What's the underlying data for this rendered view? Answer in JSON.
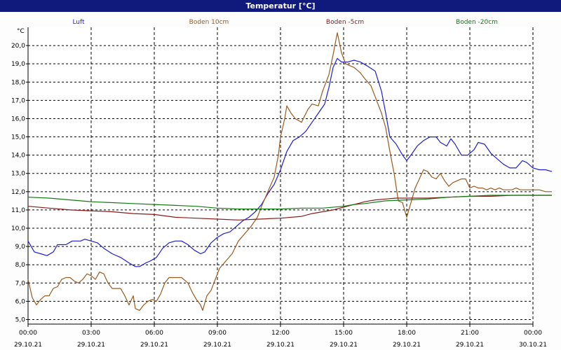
{
  "window": {
    "title": "Temperatur [°C]"
  },
  "chart_data": {
    "type": "line",
    "title": "Temperatur [°C]",
    "ylabel": "°C",
    "xlabel": "",
    "ylim": [
      4.75,
      21.0
    ],
    "grid": true,
    "legend_position": "top",
    "x_tick_labels": [
      {
        "time": "00:00",
        "date": "29.10.21"
      },
      {
        "time": "03:00",
        "date": "29.10.21"
      },
      {
        "time": "06:00",
        "date": "29.10.21"
      },
      {
        "time": "09:00",
        "date": "29.10.21"
      },
      {
        "time": "12:00",
        "date": "29.10.21"
      },
      {
        "time": "15:00",
        "date": "29.10.21"
      },
      {
        "time": "18:00",
        "date": "29.10.21"
      },
      {
        "time": "21:00",
        "date": "29.10.21"
      },
      {
        "time": "00:00",
        "date": "30.10.21"
      }
    ],
    "y_ticks": [
      "5,0",
      "6,0",
      "7,0",
      "8,0",
      "9,0",
      "10,0",
      "11,0",
      "12,0",
      "13,0",
      "14,0",
      "15,0",
      "16,0",
      "17,0",
      "18,0",
      "19,0",
      "20,0"
    ],
    "y_tick_values": [
      5,
      6,
      7,
      8,
      9,
      10,
      11,
      12,
      13,
      14,
      15,
      16,
      17,
      18,
      19,
      20
    ],
    "x_tick_hours": [
      0,
      3,
      6,
      9,
      12,
      15,
      18,
      21,
      24
    ],
    "series": [
      {
        "name": "Luft",
        "color": "#1f1fd0",
        "points": [
          [
            0,
            9.3
          ],
          [
            0.3,
            8.7
          ],
          [
            0.6,
            8.6
          ],
          [
            0.9,
            8.5
          ],
          [
            1.2,
            8.7
          ],
          [
            1.4,
            9.1
          ],
          [
            1.8,
            9.1
          ],
          [
            2.1,
            9.3
          ],
          [
            2.5,
            9.3
          ],
          [
            2.7,
            9.4
          ],
          [
            3.0,
            9.3
          ],
          [
            3.3,
            9.2
          ],
          [
            3.6,
            8.9
          ],
          [
            4.0,
            8.6
          ],
          [
            4.4,
            8.4
          ],
          [
            4.8,
            8.1
          ],
          [
            5.1,
            7.9
          ],
          [
            5.3,
            7.9
          ],
          [
            5.6,
            8.1
          ],
          [
            5.8,
            8.2
          ],
          [
            6.1,
            8.4
          ],
          [
            6.4,
            8.9
          ],
          [
            6.7,
            9.2
          ],
          [
            7.0,
            9.3
          ],
          [
            7.3,
            9.3
          ],
          [
            7.6,
            9.1
          ],
          [
            7.9,
            8.8
          ],
          [
            8.2,
            8.6
          ],
          [
            8.4,
            8.7
          ],
          [
            8.7,
            9.2
          ],
          [
            9.0,
            9.5
          ],
          [
            9.3,
            9.7
          ],
          [
            9.6,
            9.8
          ],
          [
            9.9,
            10.1
          ],
          [
            10.2,
            10.4
          ],
          [
            10.5,
            10.6
          ],
          [
            10.8,
            10.9
          ],
          [
            11.1,
            11.3
          ],
          [
            11.4,
            11.9
          ],
          [
            11.7,
            12.4
          ],
          [
            12.0,
            13.2
          ],
          [
            12.3,
            14.2
          ],
          [
            12.6,
            14.8
          ],
          [
            12.9,
            15.0
          ],
          [
            13.2,
            15.3
          ],
          [
            13.5,
            15.8
          ],
          [
            13.8,
            16.3
          ],
          [
            14.1,
            16.8
          ],
          [
            14.3,
            17.7
          ],
          [
            14.5,
            18.8
          ],
          [
            14.7,
            19.3
          ],
          [
            14.9,
            19.1
          ],
          [
            15.2,
            19.1
          ],
          [
            15.5,
            19.2
          ],
          [
            15.8,
            19.1
          ],
          [
            16.1,
            18.9
          ],
          [
            16.5,
            18.6
          ],
          [
            16.8,
            17.5
          ],
          [
            17.0,
            16.3
          ],
          [
            17.2,
            15.0
          ],
          [
            17.5,
            14.6
          ],
          [
            17.8,
            14.0
          ],
          [
            18.0,
            13.7
          ],
          [
            18.2,
            14.0
          ],
          [
            18.5,
            14.5
          ],
          [
            18.8,
            14.8
          ],
          [
            19.1,
            15.0
          ],
          [
            19.4,
            15.0
          ],
          [
            19.6,
            14.7
          ],
          [
            19.9,
            14.5
          ],
          [
            20.1,
            14.9
          ],
          [
            20.3,
            14.6
          ],
          [
            20.6,
            14.0
          ],
          [
            20.9,
            14.0
          ],
          [
            21.2,
            14.3
          ],
          [
            21.4,
            14.7
          ],
          [
            21.7,
            14.6
          ],
          [
            22.0,
            14.1
          ],
          [
            22.3,
            13.8
          ],
          [
            22.6,
            13.5
          ],
          [
            22.9,
            13.3
          ],
          [
            23.2,
            13.3
          ],
          [
            23.5,
            13.7
          ],
          [
            23.7,
            13.6
          ],
          [
            24.0,
            13.3
          ],
          [
            24.3,
            13.2
          ],
          [
            24.6,
            13.2
          ],
          [
            24.9,
            13.1
          ]
        ]
      },
      {
        "name": "Boden 10cm",
        "color": "#9c5a1e",
        "points": [
          [
            0,
            7.2
          ],
          [
            0.2,
            6.2
          ],
          [
            0.4,
            5.8
          ],
          [
            0.6,
            6.1
          ],
          [
            0.8,
            6.3
          ],
          [
            1.0,
            6.3
          ],
          [
            1.2,
            6.7
          ],
          [
            1.4,
            6.8
          ],
          [
            1.6,
            7.2
          ],
          [
            1.8,
            7.3
          ],
          [
            2.0,
            7.3
          ],
          [
            2.2,
            7.1
          ],
          [
            2.4,
            7.0
          ],
          [
            2.6,
            7.2
          ],
          [
            2.8,
            7.5
          ],
          [
            3.0,
            7.4
          ],
          [
            3.2,
            7.2
          ],
          [
            3.4,
            7.6
          ],
          [
            3.6,
            7.5
          ],
          [
            3.8,
            7.0
          ],
          [
            4.0,
            6.7
          ],
          [
            4.2,
            6.7
          ],
          [
            4.4,
            6.7
          ],
          [
            4.6,
            6.3
          ],
          [
            4.8,
            5.8
          ],
          [
            5.0,
            6.3
          ],
          [
            5.1,
            5.6
          ],
          [
            5.3,
            5.5
          ],
          [
            5.5,
            5.8
          ],
          [
            5.7,
            6.0
          ],
          [
            5.9,
            6.1
          ],
          [
            6.1,
            6.0
          ],
          [
            6.3,
            6.4
          ],
          [
            6.5,
            7.0
          ],
          [
            6.7,
            7.3
          ],
          [
            7.0,
            7.3
          ],
          [
            7.3,
            7.3
          ],
          [
            7.6,
            7.0
          ],
          [
            7.8,
            6.5
          ],
          [
            8.0,
            6.1
          ],
          [
            8.2,
            5.8
          ],
          [
            8.3,
            5.5
          ],
          [
            8.5,
            6.3
          ],
          [
            8.7,
            6.6
          ],
          [
            8.9,
            7.2
          ],
          [
            9.1,
            7.8
          ],
          [
            9.4,
            8.2
          ],
          [
            9.7,
            8.6
          ],
          [
            10.0,
            9.3
          ],
          [
            10.3,
            9.7
          ],
          [
            10.6,
            10.1
          ],
          [
            10.9,
            10.6
          ],
          [
            11.1,
            11.2
          ],
          [
            11.4,
            12.0
          ],
          [
            11.7,
            12.8
          ],
          [
            11.9,
            14.0
          ],
          [
            12.0,
            15.0
          ],
          [
            12.2,
            16.0
          ],
          [
            12.3,
            16.7
          ],
          [
            12.5,
            16.3
          ],
          [
            12.7,
            16.0
          ],
          [
            13.0,
            15.8
          ],
          [
            13.3,
            16.5
          ],
          [
            13.5,
            16.8
          ],
          [
            13.8,
            16.7
          ],
          [
            14.0,
            17.5
          ],
          [
            14.3,
            18.4
          ],
          [
            14.5,
            19.5
          ],
          [
            14.7,
            20.7
          ],
          [
            14.9,
            19.6
          ],
          [
            15.1,
            19.0
          ],
          [
            15.3,
            18.9
          ],
          [
            15.5,
            18.8
          ],
          [
            15.8,
            18.5
          ],
          [
            16.0,
            18.2
          ],
          [
            16.3,
            17.8
          ],
          [
            16.5,
            17.2
          ],
          [
            16.8,
            16.3
          ],
          [
            17.0,
            15.5
          ],
          [
            17.2,
            14.2
          ],
          [
            17.4,
            13.0
          ],
          [
            17.6,
            11.5
          ],
          [
            17.8,
            11.4
          ],
          [
            18.0,
            10.6
          ],
          [
            18.2,
            11.4
          ],
          [
            18.4,
            12.2
          ],
          [
            18.6,
            12.7
          ],
          [
            18.8,
            13.2
          ],
          [
            19.0,
            13.1
          ],
          [
            19.2,
            12.8
          ],
          [
            19.4,
            12.7
          ],
          [
            19.6,
            13.0
          ],
          [
            19.8,
            12.6
          ],
          [
            20.0,
            12.3
          ],
          [
            20.2,
            12.5
          ],
          [
            20.4,
            12.6
          ],
          [
            20.6,
            12.7
          ],
          [
            20.8,
            12.7
          ],
          [
            21.0,
            12.2
          ],
          [
            21.2,
            12.3
          ],
          [
            21.4,
            12.2
          ],
          [
            21.6,
            12.2
          ],
          [
            21.8,
            12.1
          ],
          [
            22.0,
            12.2
          ],
          [
            22.2,
            12.1
          ],
          [
            22.4,
            12.2
          ],
          [
            22.6,
            12.1
          ],
          [
            22.8,
            12.1
          ],
          [
            23.0,
            12.1
          ],
          [
            23.2,
            12.2
          ],
          [
            23.4,
            12.1
          ],
          [
            23.6,
            12.1
          ],
          [
            23.8,
            12.1
          ],
          [
            24.0,
            12.1
          ],
          [
            24.3,
            12.1
          ],
          [
            24.6,
            12.0
          ],
          [
            24.9,
            12.0
          ]
        ]
      },
      {
        "name": "Boden -5cm",
        "color": "#8a1a1a",
        "points": [
          [
            0,
            11.2
          ],
          [
            1.0,
            11.1
          ],
          [
            2.0,
            11.0
          ],
          [
            3.0,
            10.95
          ],
          [
            4.0,
            10.9
          ],
          [
            5.0,
            10.8
          ],
          [
            6.0,
            10.75
          ],
          [
            7.0,
            10.6
          ],
          [
            8.0,
            10.55
          ],
          [
            9.0,
            10.5
          ],
          [
            10.0,
            10.45
          ],
          [
            11.0,
            10.5
          ],
          [
            12.0,
            10.55
          ],
          [
            13.0,
            10.65
          ],
          [
            13.5,
            10.8
          ],
          [
            14.0,
            10.9
          ],
          [
            14.5,
            11.0
          ],
          [
            15.0,
            11.15
          ],
          [
            15.5,
            11.3
          ],
          [
            16.0,
            11.45
          ],
          [
            16.5,
            11.55
          ],
          [
            17.0,
            11.6
          ],
          [
            17.5,
            11.65
          ],
          [
            18.0,
            11.65
          ],
          [
            18.5,
            11.65
          ],
          [
            19.0,
            11.65
          ],
          [
            20.0,
            11.7
          ],
          [
            21.0,
            11.75
          ],
          [
            22.0,
            11.75
          ],
          [
            23.0,
            11.8
          ],
          [
            24.0,
            11.8
          ],
          [
            24.9,
            11.8
          ]
        ]
      },
      {
        "name": "Boden -20cm",
        "color": "#127a12",
        "points": [
          [
            0,
            11.7
          ],
          [
            1.0,
            11.65
          ],
          [
            2.0,
            11.55
          ],
          [
            3.0,
            11.45
          ],
          [
            4.0,
            11.4
          ],
          [
            5.0,
            11.35
          ],
          [
            6.0,
            11.3
          ],
          [
            7.0,
            11.25
          ],
          [
            8.0,
            11.2
          ],
          [
            9.0,
            11.1
          ],
          [
            10.0,
            11.05
          ],
          [
            11.0,
            11.05
          ],
          [
            12.0,
            11.05
          ],
          [
            13.0,
            11.1
          ],
          [
            14.0,
            11.1
          ],
          [
            15.0,
            11.2
          ],
          [
            15.5,
            11.3
          ],
          [
            16.0,
            11.35
          ],
          [
            17.0,
            11.5
          ],
          [
            18.0,
            11.55
          ],
          [
            19.0,
            11.6
          ],
          [
            20.0,
            11.7
          ],
          [
            21.0,
            11.75
          ],
          [
            22.0,
            11.8
          ],
          [
            23.0,
            11.8
          ],
          [
            24.0,
            11.8
          ],
          [
            24.9,
            11.8
          ]
        ]
      }
    ]
  }
}
